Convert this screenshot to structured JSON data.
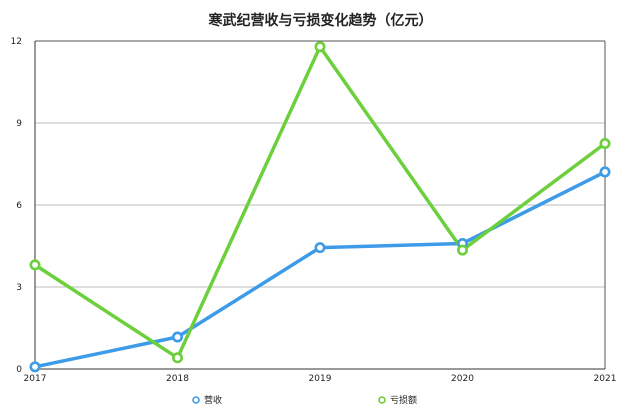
{
  "chart_data": {
    "type": "line",
    "title": "寒武纪营收与亏损变化趋势（亿元）",
    "xlabel": "",
    "ylabel": "",
    "categories": [
      "2017",
      "2018",
      "2019",
      "2020",
      "2021"
    ],
    "y_ticks": [
      0,
      3,
      6,
      9,
      12
    ],
    "ylim": [
      0,
      12
    ],
    "grid": true,
    "legend_position": "bottom",
    "series": [
      {
        "name": "营收",
        "color": "#3d9be8",
        "values": [
          0.08,
          1.17,
          4.44,
          4.59,
          7.21
        ]
      },
      {
        "name": "亏损额",
        "color": "#6bd03c",
        "values": [
          3.81,
          0.41,
          11.79,
          4.35,
          8.25
        ]
      }
    ]
  }
}
